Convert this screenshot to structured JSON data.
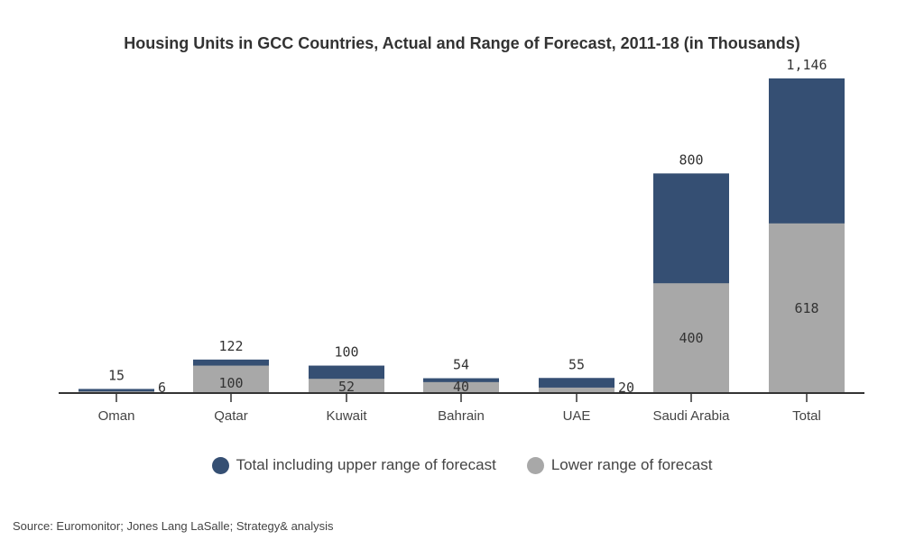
{
  "chart_data": {
    "type": "bar",
    "title": "Housing Units in GCC Countries, Actual and Range of Forecast, 2011-18 (in Thousands)",
    "categories": [
      "Oman",
      "Qatar",
      "Kuwait",
      "Bahrain",
      "UAE",
      "Saudi Arabia",
      "Total"
    ],
    "series": [
      {
        "name": "Lower range of forecast",
        "values": [
          6,
          100,
          52,
          40,
          20,
          400,
          618
        ],
        "color": "#a8a8a8"
      },
      {
        "name": "Total including upper range of forecast",
        "values": [
          15,
          122,
          100,
          54,
          55,
          800,
          1146
        ],
        "color": "#354f73"
      }
    ],
    "lower_labels": [
      "6",
      "100",
      "52",
      "40",
      "20",
      "400",
      "618"
    ],
    "upper_labels": [
      "15",
      "122",
      "100",
      "54",
      "55",
      "800",
      "1,146"
    ],
    "ylim": [
      0,
      1146
    ],
    "xlabel": "",
    "ylabel": "",
    "grid": false,
    "legend_position": "bottom"
  },
  "legend": {
    "upper": "Total including upper range of forecast",
    "lower": "Lower range of forecast"
  },
  "source": "Source: Euromonitor; Jones Lang LaSalle; Strategy& analysis"
}
